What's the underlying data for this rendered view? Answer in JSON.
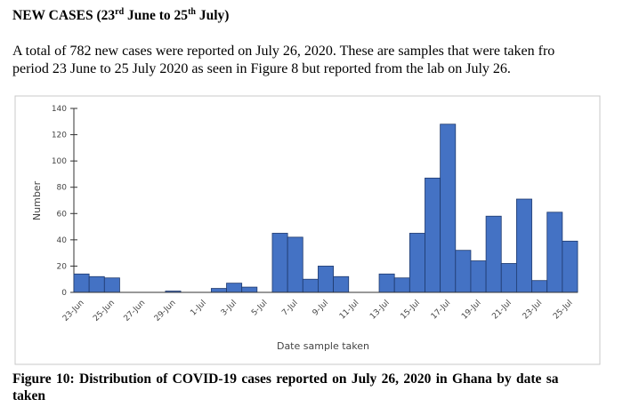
{
  "heading": {
    "text_1": "NEW CASES (23",
    "sup_1": "rd",
    "text_2": " June to 25",
    "sup_2": "th",
    "text_3": " July)"
  },
  "paragraph": [
    "A total of 782 new cases were reported on July 26, 2020. These are samples that were taken fro",
    "period 23 June to 25 July 2020 as seen in Figure 8 but reported from the lab on July 26."
  ],
  "caption": [
    "Figure 10: Distribution of COVID-19 cases reported on July 26, 2020 in Ghana by date sa",
    "taken"
  ],
  "chart_data": {
    "type": "bar",
    "x_label": "Date sample taken",
    "y_label": "Number",
    "color": "#4472c4",
    "categories": [
      "23-Jun",
      null,
      "25-Jun",
      null,
      "27-Jun",
      null,
      "29-Jun",
      null,
      "1-Jul",
      null,
      "3-Jul",
      null,
      "5-Jul",
      null,
      "7-Jul",
      null,
      "9-Jul",
      null,
      "11-Jul",
      null,
      "13-Jul",
      null,
      "15-Jul",
      null,
      "17-Jul",
      null,
      "19-Jul",
      null,
      "21-Jul",
      null,
      "23-Jul",
      null,
      "25-Jul"
    ],
    "values": [
      14,
      12,
      11,
      0,
      0,
      0,
      1,
      0,
      0,
      3,
      7,
      4,
      0,
      45,
      42,
      10,
      20,
      12,
      0,
      0,
      14,
      11,
      45,
      87,
      128,
      32,
      24,
      58,
      22,
      71,
      9,
      61,
      39
    ],
    "ylim": [
      0,
      140
    ],
    "yticks": [
      0,
      20,
      40,
      60,
      80,
      100,
      120,
      140
    ]
  }
}
